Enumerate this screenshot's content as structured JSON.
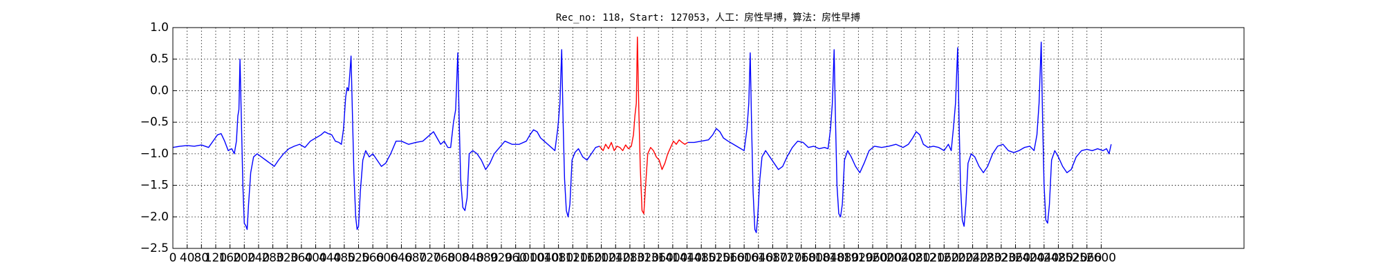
{
  "chart_data": {
    "type": "line",
    "title": "Rec_no: 118，Start: 127053，人工：房性早搏，算法：房性早搏",
    "xlim": [
      0,
      3000
    ],
    "xticks": [
      0,
      40,
      80,
      120,
      160,
      200,
      240,
      280,
      320,
      360,
      400,
      440,
      480,
      520,
      560,
      600,
      640,
      680,
      720,
      760,
      800,
      840,
      880,
      920,
      960,
      1000,
      1040,
      1080,
      1120,
      1160,
      1200,
      1240,
      1280,
      1320,
      1360,
      1400,
      1440,
      1480,
      1520,
      1560,
      1600,
      1640,
      1680,
      1720,
      1760,
      1800,
      1840,
      1880,
      1920,
      1960,
      2000,
      2040,
      2080,
      2120,
      2160,
      2200,
      2240,
      2280,
      2320,
      2360,
      2400,
      2440,
      2480,
      2520,
      2560,
      2600
    ],
    "ylim": [
      -2.5,
      1.0
    ],
    "yticks": [
      {
        "value": -2.5,
        "label": "−2.5"
      },
      {
        "value": -2.0,
        "label": "−2.0"
      },
      {
        "value": -1.5,
        "label": "−1.5"
      },
      {
        "value": -1.0,
        "label": "−1.0"
      },
      {
        "value": -0.5,
        "label": "−0.5"
      },
      {
        "value": 0.0,
        "label": "0.0"
      },
      {
        "value": 0.5,
        "label": "0.5"
      },
      {
        "value": 1.0,
        "label": "1.0"
      }
    ],
    "grid": true,
    "series": [
      {
        "color": "#0000ff",
        "x": [
          0,
          20,
          40,
          60,
          80,
          100,
          115,
          125,
          135,
          145,
          155,
          165,
          172,
          178,
          182,
          185,
          188,
          192,
          196,
          200,
          205,
          208,
          212,
          218,
          226,
          236,
          248,
          260,
          272,
          284,
          296,
          310,
          325,
          340,
          355,
          370,
          385,
          400,
          415,
          425,
          435,
          445,
          455,
          465,
          472,
          478,
          484,
          488,
          492,
          496,
          499,
          503,
          507,
          512,
          516,
          520,
          525,
          532,
          540,
          550,
          560,
          572,
          584,
          596,
          610,
          625,
          640,
          660,
          680,
          700,
          720,
          730,
          740,
          750,
          760,
          770,
          778,
          786,
          792,
          798,
          802,
          806,
          812,
          818,
          824,
          830,
          840,
          852,
          864,
          876,
          888,
          900,
          915,
          930,
          950,
          970,
          990,
          1000,
          1010,
          1020,
          1030,
          1040,
          1050,
          1060,
          1070,
          1078,
          1084,
          1089,
          1093,
          1097,
          1102,
          1107,
          1112,
          1118,
          1126,
          1136,
          1148,
          1160,
          1172,
          1184,
          1195,
          1300,
          1442,
          1460,
          1480,
          1500,
          1512,
          1522,
          1532,
          1542,
          1555,
          1570,
          1585,
          1600,
          1608,
          1613,
          1617,
          1621,
          1625,
          1630,
          1634,
          1638,
          1644,
          1650,
          1660,
          1672,
          1684,
          1696,
          1708,
          1720,
          1735,
          1750,
          1765,
          1780,
          1795,
          1810,
          1825,
          1835,
          1842,
          1847,
          1852,
          1856,
          1860,
          1865,
          1870,
          1875,
          1881,
          1890,
          1900,
          1912,
          1924,
          1936,
          1950,
          1965,
          1985,
          2005,
          2025,
          2045,
          2060,
          2072,
          2082,
          2092,
          2102,
          2115,
          2130,
          2145,
          2160,
          2172,
          2180,
          2186,
          2192,
          2198,
          2202,
          2206,
          2211,
          2216,
          2221,
          2227,
          2236,
          2246,
          2258,
          2270,
          2282,
          2296,
          2310,
          2325,
          2340,
          2355,
          2370,
          2385,
          2400,
          2412,
          2420,
          2426,
          2432,
          2436,
          2440,
          2445,
          2450,
          2455,
          2461,
          2470,
          2480,
          2492,
          2504,
          2516,
          2530,
          2545,
          2560,
          2575,
          2590,
          2605,
          2615,
          2622,
          2628
        ],
        "values": [
          -0.9,
          -0.88,
          -0.87,
          -0.88,
          -0.86,
          -0.9,
          -0.78,
          -0.7,
          -0.68,
          -0.8,
          -0.95,
          -0.92,
          -1.0,
          -0.8,
          -0.4,
          -0.3,
          0.5,
          -0.5,
          -1.5,
          -2.1,
          -2.15,
          -2.2,
          -1.8,
          -1.3,
          -1.05,
          -1.0,
          -1.05,
          -1.1,
          -1.15,
          -1.2,
          -1.1,
          -1.0,
          -0.92,
          -0.88,
          -0.85,
          -0.9,
          -0.8,
          -0.75,
          -0.7,
          -0.65,
          -0.68,
          -0.7,
          -0.8,
          -0.82,
          -0.85,
          -0.6,
          -0.1,
          0.05,
          0.0,
          0.3,
          0.55,
          -0.4,
          -1.3,
          -2.0,
          -2.2,
          -2.15,
          -1.6,
          -1.1,
          -0.95,
          -1.05,
          -1.0,
          -1.1,
          -1.2,
          -1.15,
          -1.0,
          -0.8,
          -0.8,
          -0.85,
          -0.82,
          -0.8,
          -0.7,
          -0.65,
          -0.75,
          -0.85,
          -0.8,
          -0.9,
          -0.9,
          -0.5,
          -0.3,
          0.6,
          -0.5,
          -1.4,
          -1.85,
          -1.9,
          -1.7,
          -1.0,
          -0.95,
          -1.0,
          -1.1,
          -1.25,
          -1.15,
          -1.0,
          -0.9,
          -0.8,
          -0.85,
          -0.85,
          -0.8,
          -0.7,
          -0.62,
          -0.65,
          -0.75,
          -0.8,
          -0.85,
          -0.9,
          -0.95,
          -0.6,
          -0.2,
          0.65,
          -0.5,
          -1.4,
          -1.9,
          -2.0,
          -1.8,
          -1.1,
          -0.98,
          -0.92,
          -1.05,
          -1.1,
          -1.0,
          -0.9,
          -0.88,
          null,
          -0.82,
          -0.82,
          -0.8,
          -0.78,
          -0.7,
          -0.6,
          -0.65,
          -0.75,
          -0.8,
          -0.85,
          -0.9,
          -0.95,
          -0.6,
          -0.2,
          0.6,
          -0.6,
          -1.6,
          -2.2,
          -2.25,
          -2.0,
          -1.4,
          -1.05,
          -0.95,
          -1.05,
          -1.15,
          -1.25,
          -1.2,
          -1.05,
          -0.9,
          -0.8,
          -0.82,
          -0.9,
          -0.88,
          -0.92,
          -0.9,
          -0.92,
          -0.6,
          -0.2,
          0.65,
          -0.5,
          -1.5,
          -1.95,
          -2.0,
          -1.8,
          -1.1,
          -0.95,
          -1.05,
          -1.2,
          -1.3,
          -1.15,
          -0.95,
          -0.88,
          -0.9,
          -0.88,
          -0.85,
          -0.9,
          -0.85,
          -0.75,
          -0.65,
          -0.7,
          -0.85,
          -0.9,
          -0.88,
          -0.9,
          -0.95,
          -0.85,
          -0.95,
          -0.6,
          -0.2,
          0.68,
          -0.5,
          -1.5,
          -2.05,
          -2.15,
          -1.8,
          -1.15,
          -1.0,
          -1.05,
          -1.2,
          -1.3,
          -1.2,
          -1.0,
          -0.88,
          -0.85,
          -0.95,
          -0.98,
          -0.95,
          -0.9,
          -0.88,
          -0.95,
          -0.7,
          -0.2,
          0.77,
          -0.5,
          -1.5,
          -2.05,
          -2.1,
          -1.8,
          -1.1,
          -0.95,
          -1.05,
          -1.2,
          -1.3,
          -1.25,
          -1.05,
          -0.95,
          -0.93,
          -0.95,
          -0.92,
          -0.95,
          -0.92,
          -1.0,
          -0.85
        ]
      },
      {
        "color": "#ff0000",
        "x": [
          1195,
          1205,
          1212,
          1220,
          1228,
          1236,
          1244,
          1252,
          1260,
          1268,
          1276,
          1284,
          1290,
          1294,
          1298,
          1301,
          1305,
          1309,
          1314,
          1319,
          1324,
          1330,
          1338,
          1346,
          1354,
          1362,
          1370,
          1378,
          1386,
          1394,
          1402,
          1410,
          1418,
          1426,
          1434,
          1442
        ],
        "values": [
          -0.88,
          -0.95,
          -0.85,
          -0.92,
          -0.82,
          -0.95,
          -0.88,
          -0.9,
          -0.95,
          -0.86,
          -0.92,
          -0.88,
          -0.7,
          -0.4,
          -0.2,
          0.85,
          -0.3,
          -1.2,
          -1.9,
          -1.95,
          -1.5,
          -1.0,
          -0.9,
          -0.95,
          -1.05,
          -1.1,
          -1.25,
          -1.15,
          -1.0,
          -0.9,
          -0.8,
          -0.85,
          -0.78,
          -0.82,
          -0.85,
          -0.82
        ]
      }
    ]
  }
}
